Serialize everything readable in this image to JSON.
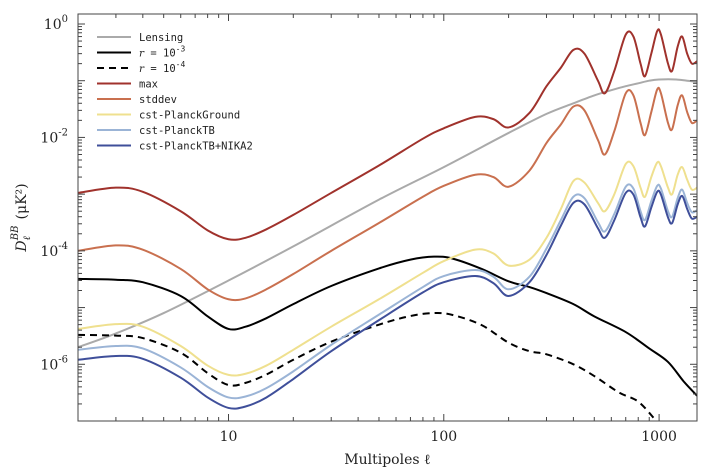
{
  "chart_data": {
    "type": "line",
    "title": "",
    "xlabel": "Multipoles ℓ",
    "ylabel": "D_ℓ^BB (μK²)",
    "xscale": "log",
    "yscale": "log",
    "xlim": [
      2,
      1500
    ],
    "ylim": [
      1e-07,
      1.5
    ],
    "xticks": [
      {
        "value": 10,
        "label": "10"
      },
      {
        "value": 100,
        "label": "100"
      },
      {
        "value": 1000,
        "label": "1000"
      }
    ],
    "yticks": [
      {
        "value": 1e-06,
        "base": "10",
        "exp": "-6"
      },
      {
        "value": 0.0001,
        "base": "10",
        "exp": "-4"
      },
      {
        "value": 0.01,
        "base": "10",
        "exp": "-2"
      },
      {
        "value": 1,
        "base": "10",
        "exp": "0"
      }
    ],
    "grid": false,
    "legend_position": "top-left",
    "series": [
      {
        "name": "Lensing",
        "color": "#aaaaaa",
        "dash": "solid",
        "points": [
          [
            2,
            2e-06
          ],
          [
            3,
            3.5e-06
          ],
          [
            5,
            8e-06
          ],
          [
            10,
            3e-05
          ],
          [
            20,
            0.00012
          ],
          [
            50,
            0.0008
          ],
          [
            100,
            0.003
          ],
          [
            200,
            0.012
          ],
          [
            300,
            0.026
          ],
          [
            400,
            0.04
          ],
          [
            500,
            0.055
          ],
          [
            600,
            0.068
          ],
          [
            700,
            0.08
          ],
          [
            800,
            0.09
          ],
          [
            900,
            0.1
          ],
          [
            1000,
            0.105
          ],
          [
            1200,
            0.105
          ],
          [
            1500,
            0.095
          ]
        ]
      },
      {
        "name": "r = 10^-3",
        "label_prefix": "r",
        "label_base": "10",
        "label_exp": "-3",
        "color": "#000000",
        "dash": "solid",
        "points": [
          [
            2,
            3.2e-05
          ],
          [
            3,
            3.1e-05
          ],
          [
            4,
            2.8e-05
          ],
          [
            6,
            1.6e-05
          ],
          [
            8,
            7e-06
          ],
          [
            10,
            4.2e-06
          ],
          [
            12,
            4.6e-06
          ],
          [
            15,
            6.5e-06
          ],
          [
            20,
            1.15e-05
          ],
          [
            30,
            2.4e-05
          ],
          [
            50,
            4.9e-05
          ],
          [
            70,
            7e-05
          ],
          [
            90,
            7.9e-05
          ],
          [
            110,
            7.3e-05
          ],
          [
            150,
            4.8e-05
          ],
          [
            200,
            2.9e-05
          ],
          [
            250,
            2.3e-05
          ],
          [
            300,
            1.8e-05
          ],
          [
            400,
            1.15e-05
          ],
          [
            500,
            7e-06
          ],
          [
            700,
            3.7e-06
          ],
          [
            900,
            1.9e-06
          ],
          [
            1100,
            1.1e-06
          ],
          [
            1300,
            5e-07
          ],
          [
            1500,
            2.8e-07
          ]
        ]
      },
      {
        "name": "r = 10^-4",
        "label_prefix": "r",
        "label_base": "10",
        "label_exp": "-4",
        "color": "#000000",
        "dash": "dashed",
        "points": [
          [
            2,
            3.3e-06
          ],
          [
            3,
            3.2e-06
          ],
          [
            4,
            2.9e-06
          ],
          [
            6,
            1.6e-06
          ],
          [
            8,
            7e-07
          ],
          [
            10,
            4.3e-07
          ],
          [
            12,
            4.7e-07
          ],
          [
            15,
            6.6e-07
          ],
          [
            20,
            1.2e-06
          ],
          [
            30,
            2.5e-06
          ],
          [
            50,
            5e-06
          ],
          [
            70,
            7.1e-06
          ],
          [
            90,
            8e-06
          ],
          [
            110,
            7.4e-06
          ],
          [
            150,
            4.9e-06
          ],
          [
            200,
            2.4e-06
          ],
          [
            250,
            1.7e-06
          ],
          [
            300,
            1.5e-06
          ],
          [
            400,
            1e-06
          ],
          [
            500,
            6.2e-07
          ],
          [
            650,
            3.2e-07
          ],
          [
            800,
            2.2e-07
          ],
          [
            950,
            1.1e-07
          ]
        ]
      },
      {
        "name": "max",
        "color": "#a0322c",
        "dash": "solid",
        "points": [
          [
            2,
            0.00105
          ],
          [
            3,
            0.0013
          ],
          [
            4,
            0.0011
          ],
          [
            6,
            0.0005
          ],
          [
            8,
            0.00023
          ],
          [
            10,
            0.00016
          ],
          [
            12,
            0.00017
          ],
          [
            15,
            0.00024
          ],
          [
            20,
            0.00043
          ],
          [
            30,
            0.00105
          ],
          [
            50,
            0.0032
          ],
          [
            80,
            0.0095
          ],
          [
            100,
            0.0145
          ],
          [
            140,
            0.023
          ],
          [
            170,
            0.021
          ],
          [
            200,
            0.015
          ],
          [
            250,
            0.027
          ],
          [
            300,
            0.08
          ],
          [
            350,
            0.17
          ],
          [
            400,
            0.35
          ],
          [
            450,
            0.3
          ],
          [
            520,
            0.1
          ],
          [
            560,
            0.06
          ],
          [
            620,
            0.15
          ],
          [
            700,
            0.65
          ],
          [
            760,
            0.6
          ],
          [
            820,
            0.2
          ],
          [
            860,
            0.12
          ],
          [
            920,
            0.3
          ],
          [
            980,
            0.75
          ],
          [
            1020,
            0.65
          ],
          [
            1100,
            0.2
          ],
          [
            1150,
            0.15
          ],
          [
            1220,
            0.4
          ],
          [
            1280,
            0.6
          ],
          [
            1350,
            0.3
          ],
          [
            1420,
            0.2
          ],
          [
            1500,
            0.22
          ]
        ]
      },
      {
        "name": "stddev",
        "color": "#c9704f",
        "dash": "solid",
        "points": [
          [
            2,
            0.0001
          ],
          [
            3,
            0.000125
          ],
          [
            4,
            0.000105
          ],
          [
            6,
            4.8e-05
          ],
          [
            8,
            2.1e-05
          ],
          [
            10,
            1.4e-05
          ],
          [
            12,
            1.45e-05
          ],
          [
            15,
            2.1e-05
          ],
          [
            20,
            3.9e-05
          ],
          [
            30,
            0.0001
          ],
          [
            50,
            0.00031
          ],
          [
            80,
            0.0009
          ],
          [
            100,
            0.0014
          ],
          [
            140,
            0.0022
          ],
          [
            170,
            0.002
          ],
          [
            200,
            0.00135
          ],
          [
            250,
            0.0026
          ],
          [
            300,
            0.008
          ],
          [
            350,
            0.017
          ],
          [
            400,
            0.035
          ],
          [
            450,
            0.03
          ],
          [
            520,
            0.009
          ],
          [
            560,
            0.005
          ],
          [
            620,
            0.013
          ],
          [
            700,
            0.06
          ],
          [
            760,
            0.055
          ],
          [
            820,
            0.018
          ],
          [
            860,
            0.011
          ],
          [
            920,
            0.028
          ],
          [
            980,
            0.07
          ],
          [
            1020,
            0.06
          ],
          [
            1100,
            0.018
          ],
          [
            1150,
            0.014
          ],
          [
            1220,
            0.037
          ],
          [
            1280,
            0.055
          ],
          [
            1350,
            0.028
          ],
          [
            1420,
            0.018
          ],
          [
            1500,
            0.02
          ]
        ]
      },
      {
        "name": "cst-PlanckGround",
        "color": "#efe08f",
        "dash": "solid",
        "points": [
          [
            2,
            4.2e-06
          ],
          [
            3,
            5.1e-06
          ],
          [
            4,
            4.6e-06
          ],
          [
            6,
            2.1e-06
          ],
          [
            8,
            9.5e-07
          ],
          [
            10,
            6.5e-07
          ],
          [
            12,
            6.8e-07
          ],
          [
            15,
            9.5e-07
          ],
          [
            20,
            1.8e-06
          ],
          [
            30,
            4.6e-06
          ],
          [
            50,
            1.4e-05
          ],
          [
            80,
            4.1e-05
          ],
          [
            100,
            6.6e-05
          ],
          [
            140,
            0.000105
          ],
          [
            170,
            9e-05
          ],
          [
            200,
            5.5e-05
          ],
          [
            250,
            7e-05
          ],
          [
            300,
            0.00017
          ],
          [
            350,
            0.00055
          ],
          [
            400,
            0.0017
          ],
          [
            450,
            0.0016
          ],
          [
            520,
            0.0007
          ],
          [
            560,
            0.0005
          ],
          [
            620,
            0.001
          ],
          [
            700,
            0.0034
          ],
          [
            760,
            0.0031
          ],
          [
            820,
            0.0013
          ],
          [
            860,
            0.0009
          ],
          [
            920,
            0.002
          ],
          [
            980,
            0.0036
          ],
          [
            1020,
            0.0031
          ],
          [
            1100,
            0.0013
          ],
          [
            1150,
            0.001
          ],
          [
            1220,
            0.0022
          ],
          [
            1280,
            0.003
          ],
          [
            1350,
            0.0018
          ],
          [
            1420,
            0.0012
          ],
          [
            1500,
            0.0013
          ]
        ]
      },
      {
        "name": "cst-PlanckTB",
        "color": "#9bb4d6",
        "dash": "solid",
        "points": [
          [
            2,
            1.8e-06
          ],
          [
            3,
            2.1e-06
          ],
          [
            4,
            1.9e-06
          ],
          [
            6,
            8.8e-07
          ],
          [
            8,
            4e-07
          ],
          [
            10,
            2.6e-07
          ],
          [
            12,
            2.7e-07
          ],
          [
            15,
            3.8e-07
          ],
          [
            20,
            7.5e-07
          ],
          [
            30,
            2.2e-06
          ],
          [
            50,
            7.5e-06
          ],
          [
            80,
            2.3e-05
          ],
          [
            100,
            3.6e-05
          ],
          [
            140,
            4.6e-05
          ],
          [
            170,
            3.5e-05
          ],
          [
            200,
            2.1e-05
          ],
          [
            250,
            3.5e-05
          ],
          [
            300,
            0.00011
          ],
          [
            350,
            0.00035
          ],
          [
            400,
            0.0009
          ],
          [
            450,
            0.00085
          ],
          [
            520,
            0.00032
          ],
          [
            560,
            0.00022
          ],
          [
            620,
            0.00045
          ],
          [
            700,
            0.00135
          ],
          [
            760,
            0.00125
          ],
          [
            820,
            0.0005
          ],
          [
            860,
            0.00035
          ],
          [
            920,
            0.00075
          ],
          [
            980,
            0.0014
          ],
          [
            1020,
            0.00125
          ],
          [
            1100,
            0.0005
          ],
          [
            1150,
            0.0004
          ],
          [
            1220,
            0.00085
          ],
          [
            1280,
            0.0012
          ],
          [
            1350,
            0.0007
          ],
          [
            1420,
            0.00048
          ],
          [
            1500,
            0.00052
          ]
        ]
      },
      {
        "name": "cst-PlanckTB+NIKA2",
        "color": "#3f4f9a",
        "dash": "solid",
        "points": [
          [
            2,
            1.2e-06
          ],
          [
            3,
            1.4e-06
          ],
          [
            4,
            1.25e-06
          ],
          [
            6,
            5.8e-07
          ],
          [
            8,
            2.6e-07
          ],
          [
            10,
            1.7e-07
          ],
          [
            12,
            1.8e-07
          ],
          [
            15,
            2.6e-07
          ],
          [
            20,
            5.5e-07
          ],
          [
            30,
            1.7e-06
          ],
          [
            50,
            6e-06
          ],
          [
            80,
            1.85e-05
          ],
          [
            100,
            2.8e-05
          ],
          [
            140,
            3.6e-05
          ],
          [
            170,
            2.7e-05
          ],
          [
            200,
            1.6e-05
          ],
          [
            250,
            2.8e-05
          ],
          [
            300,
            8.5e-05
          ],
          [
            350,
            0.00028
          ],
          [
            400,
            0.0007
          ],
          [
            450,
            0.00066
          ],
          [
            520,
            0.00025
          ],
          [
            560,
            0.00017
          ],
          [
            620,
            0.00035
          ],
          [
            700,
            0.00105
          ],
          [
            760,
            0.00098
          ],
          [
            820,
            0.00039
          ],
          [
            860,
            0.00027
          ],
          [
            920,
            0.00058
          ],
          [
            980,
            0.0011
          ],
          [
            1020,
            0.00098
          ],
          [
            1100,
            0.00039
          ],
          [
            1150,
            0.00031
          ],
          [
            1220,
            0.00066
          ],
          [
            1280,
            0.00093
          ],
          [
            1350,
            0.00055
          ],
          [
            1420,
            0.00037
          ],
          [
            1500,
            0.0004
          ]
        ]
      }
    ]
  }
}
